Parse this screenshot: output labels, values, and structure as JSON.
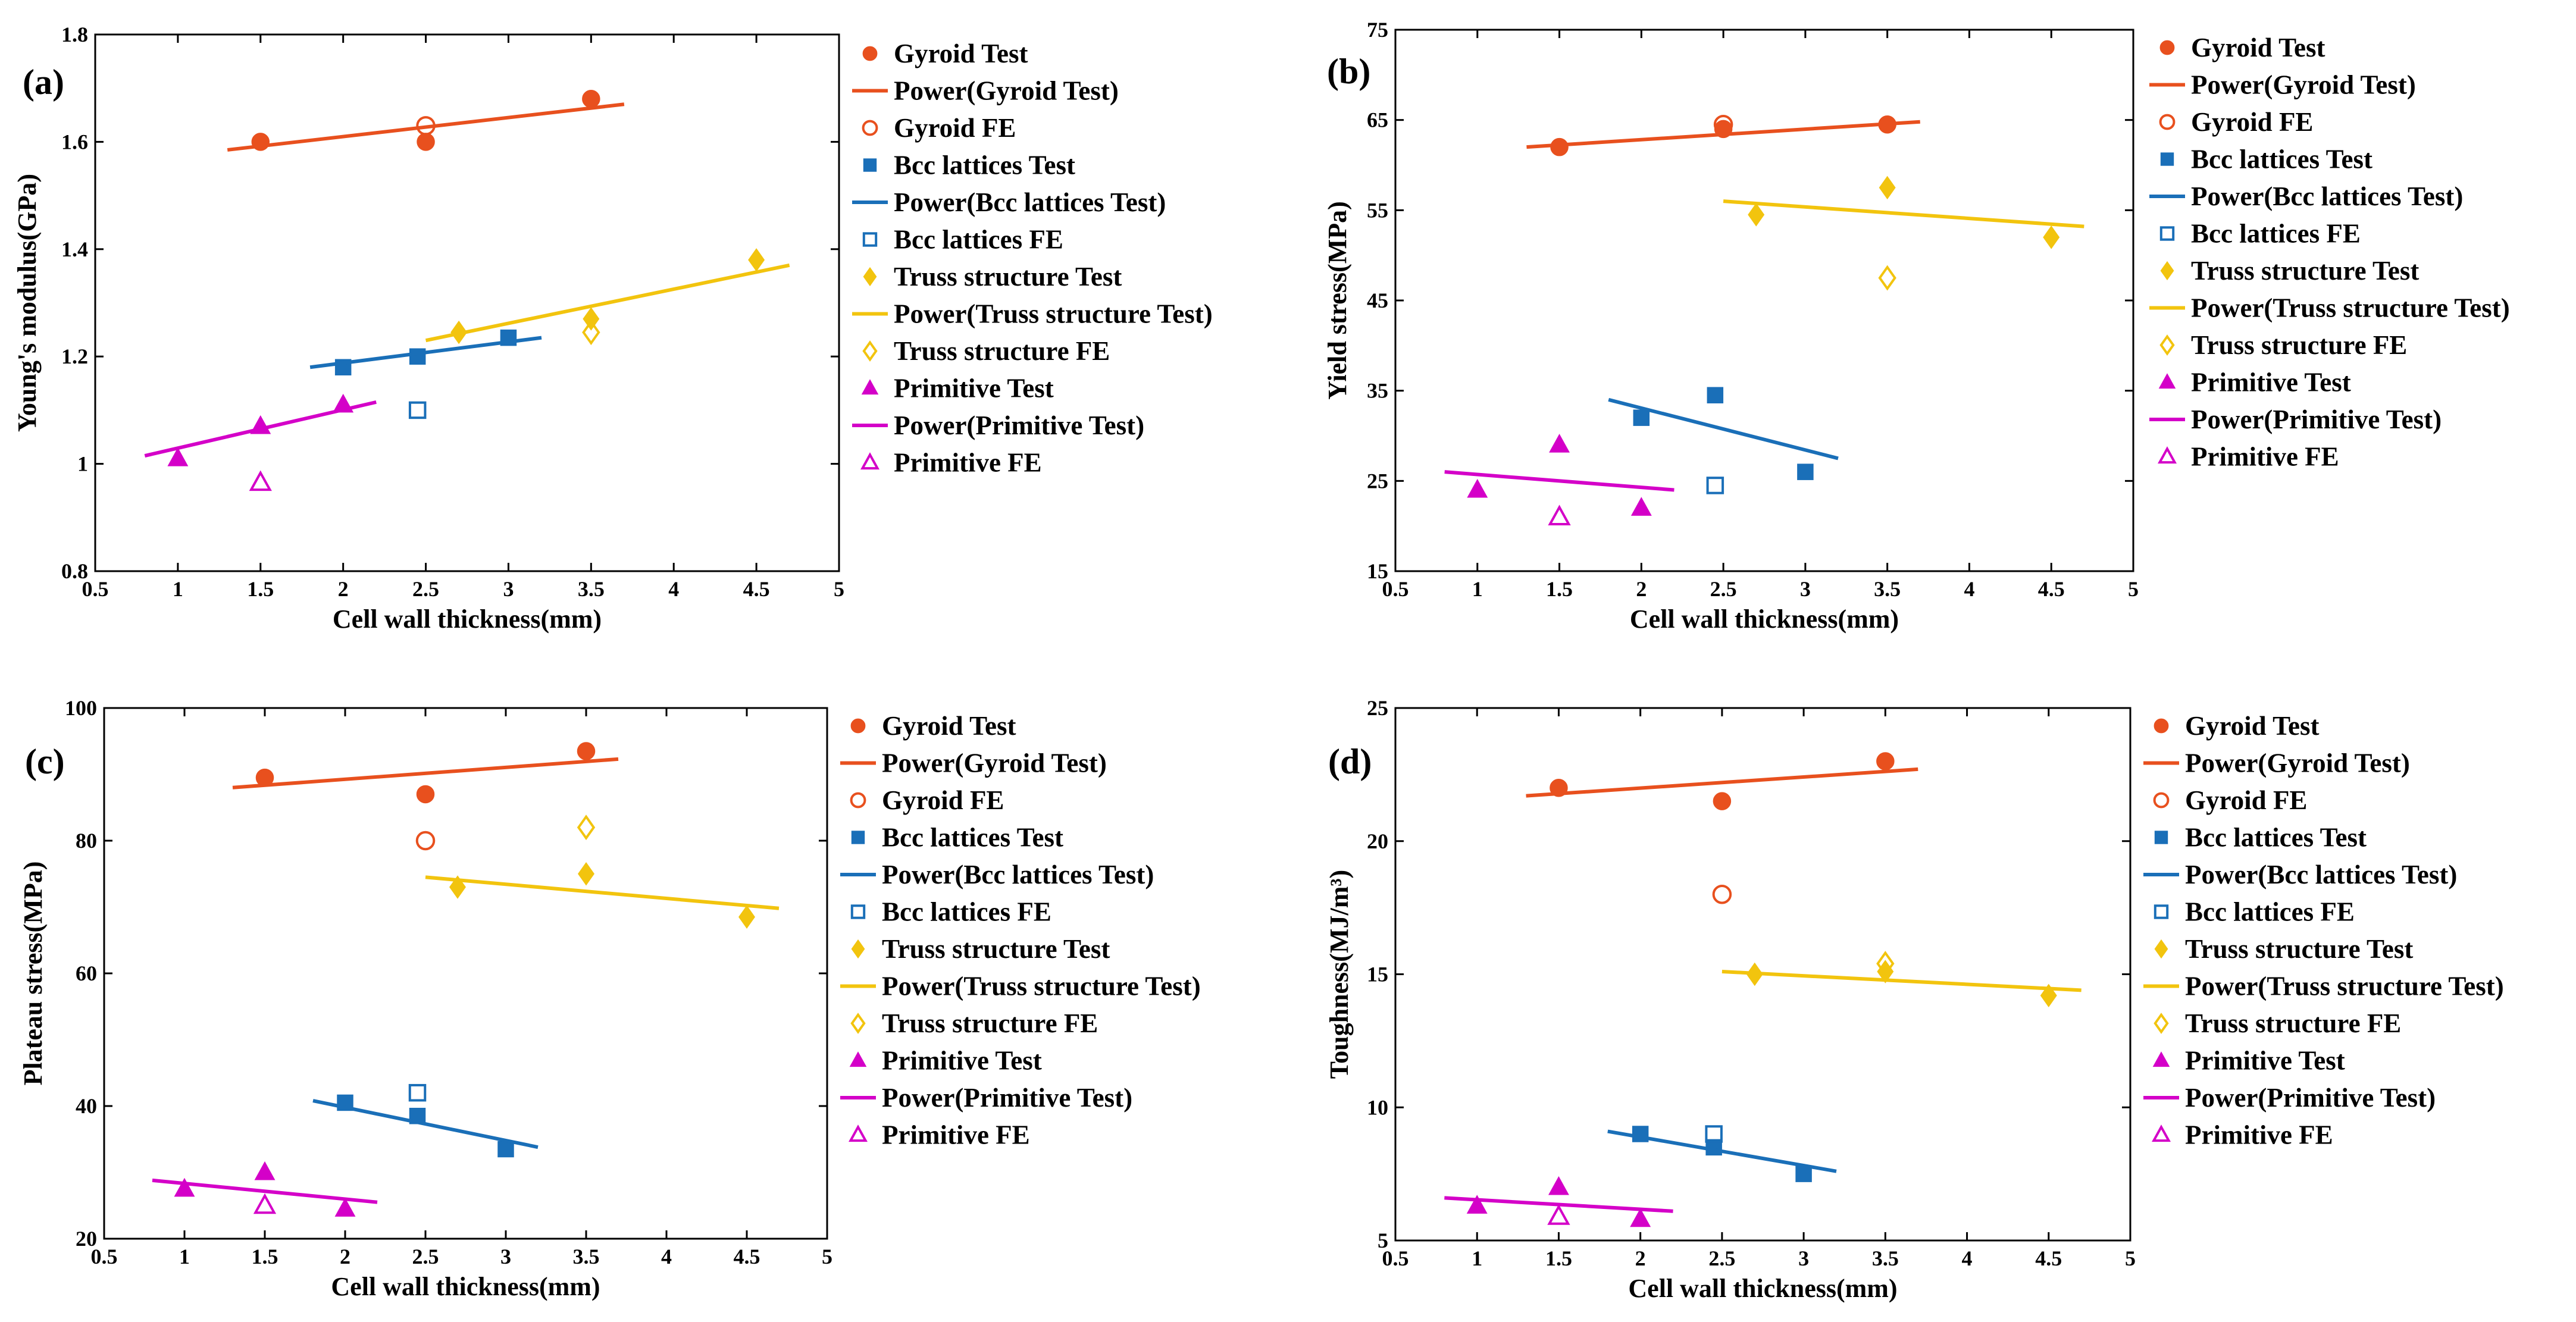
{
  "colors": {
    "gyroid": "#e8501e",
    "bcc": "#1a6fb8",
    "truss": "#f2c40e",
    "primitive": "#d400c8"
  },
  "legend": [
    {
      "label": "Gyroid Test",
      "kind": "marker",
      "marker": "circle-filled",
      "color": "gyroid"
    },
    {
      "label": "Power(Gyroid Test)",
      "kind": "line",
      "color": "gyroid"
    },
    {
      "label": "Gyroid FE",
      "kind": "marker",
      "marker": "circle-open",
      "color": "gyroid"
    },
    {
      "label": "Bcc lattices Test",
      "kind": "marker",
      "marker": "square-filled",
      "color": "bcc"
    },
    {
      "label": "Power(Bcc lattices Test)",
      "kind": "line",
      "color": "bcc"
    },
    {
      "label": "Bcc lattices FE",
      "kind": "marker",
      "marker": "square-open",
      "color": "bcc"
    },
    {
      "label": "Truss structure Test",
      "kind": "marker",
      "marker": "diamond-filled",
      "color": "truss"
    },
    {
      "label": "Power(Truss structure Test)",
      "kind": "line",
      "color": "truss"
    },
    {
      "label": "Truss structure FE",
      "kind": "marker",
      "marker": "diamond-open",
      "color": "truss"
    },
    {
      "label": "Primitive Test",
      "kind": "marker",
      "marker": "triangle-filled",
      "color": "primitive"
    },
    {
      "label": "Power(Primitive Test)",
      "kind": "line",
      "color": "primitive"
    },
    {
      "label": "Primitive FE",
      "kind": "marker",
      "marker": "triangle-open",
      "color": "primitive"
    }
  ],
  "chart_data": [
    {
      "type": "scatter",
      "panel": "(a)",
      "xlabel": "Cell wall thickness(mm)",
      "ylabel": "Young's modulus(GPa)",
      "xlim": [
        0.5,
        5
      ],
      "ylim": [
        0.8,
        1.8
      ],
      "xticks": [
        "0.5",
        "1",
        "1.5",
        "2",
        "2.5",
        "3",
        "3.5",
        "4",
        "4.5",
        "5"
      ],
      "yticks": [
        "0.8",
        "1",
        "1.2",
        "1.4",
        "1.6",
        "1.8"
      ],
      "series": [
        {
          "name": "Gyroid Test",
          "marker": "circle-filled",
          "color": "gyroid",
          "points": [
            [
              1.5,
              1.6
            ],
            [
              2.5,
              1.6
            ],
            [
              3.5,
              1.68
            ]
          ]
        },
        {
          "name": "Power(Gyroid Test)",
          "marker": "line",
          "color": "gyroid",
          "points": [
            [
              1.3,
              1.585
            ],
            [
              3.7,
              1.67
            ]
          ]
        },
        {
          "name": "Gyroid FE",
          "marker": "circle-open",
          "color": "gyroid",
          "points": [
            [
              2.5,
              1.63
            ]
          ]
        },
        {
          "name": "Bcc lattices Test",
          "marker": "square-filled",
          "color": "bcc",
          "points": [
            [
              2.0,
              1.18
            ],
            [
              2.45,
              1.2
            ],
            [
              3.0,
              1.235
            ]
          ]
        },
        {
          "name": "Power(Bcc lattices Test)",
          "marker": "line",
          "color": "bcc",
          "points": [
            [
              1.8,
              1.18
            ],
            [
              3.2,
              1.235
            ]
          ]
        },
        {
          "name": "Bcc lattices FE",
          "marker": "square-open",
          "color": "bcc",
          "points": [
            [
              2.45,
              1.1
            ]
          ]
        },
        {
          "name": "Truss structure Test",
          "marker": "diamond-filled",
          "color": "truss",
          "points": [
            [
              2.7,
              1.245
            ],
            [
              3.5,
              1.27
            ],
            [
              4.5,
              1.38
            ]
          ]
        },
        {
          "name": "Power(Truss structure Test)",
          "marker": "line",
          "color": "truss",
          "points": [
            [
              2.5,
              1.23
            ],
            [
              4.7,
              1.37
            ]
          ]
        },
        {
          "name": "Truss structure FE",
          "marker": "diamond-open",
          "color": "truss",
          "points": [
            [
              3.5,
              1.245
            ]
          ]
        },
        {
          "name": "Primitive Test",
          "marker": "triangle-filled",
          "color": "primitive",
          "points": [
            [
              1.0,
              1.01
            ],
            [
              1.5,
              1.07
            ],
            [
              2.0,
              1.11
            ]
          ]
        },
        {
          "name": "Power(Primitive Test)",
          "marker": "line",
          "color": "primitive",
          "points": [
            [
              0.8,
              1.015
            ],
            [
              2.2,
              1.115
            ]
          ]
        },
        {
          "name": "Primitive FE",
          "marker": "triangle-open",
          "color": "primitive",
          "points": [
            [
              1.5,
              0.965
            ]
          ]
        }
      ]
    },
    {
      "type": "scatter",
      "panel": "(b)",
      "xlabel": "Cell wall thickness(mm)",
      "ylabel": "Yield stress(MPa)",
      "xlim": [
        0.5,
        5
      ],
      "ylim": [
        15,
        75
      ],
      "xticks": [
        "0.5",
        "1",
        "1.5",
        "2",
        "2.5",
        "3",
        "3.5",
        "4",
        "4.5",
        "5"
      ],
      "yticks": [
        "15",
        "25",
        "35",
        "45",
        "55",
        "65",
        "75"
      ],
      "series": [
        {
          "name": "Gyroid Test",
          "marker": "circle-filled",
          "color": "gyroid",
          "points": [
            [
              1.5,
              62
            ],
            [
              2.5,
              64
            ],
            [
              3.5,
              64.5
            ]
          ]
        },
        {
          "name": "Power(Gyroid Test)",
          "marker": "line",
          "color": "gyroid",
          "points": [
            [
              1.3,
              62
            ],
            [
              3.7,
              64.8
            ]
          ]
        },
        {
          "name": "Gyroid FE",
          "marker": "circle-open",
          "color": "gyroid",
          "points": [
            [
              2.5,
              64.5
            ]
          ]
        },
        {
          "name": "Bcc lattices Test",
          "marker": "square-filled",
          "color": "bcc",
          "points": [
            [
              2.0,
              32
            ],
            [
              2.45,
              34.5
            ],
            [
              3.0,
              26
            ]
          ]
        },
        {
          "name": "Power(Bcc lattices Test)",
          "marker": "line",
          "color": "bcc",
          "points": [
            [
              1.8,
              34
            ],
            [
              3.2,
              27.5
            ]
          ]
        },
        {
          "name": "Bcc lattices FE",
          "marker": "square-open",
          "color": "bcc",
          "points": [
            [
              2.45,
              24.5
            ]
          ]
        },
        {
          "name": "Truss structure Test",
          "marker": "diamond-filled",
          "color": "truss",
          "points": [
            [
              2.7,
              54.5
            ],
            [
              3.5,
              57.5
            ],
            [
              4.5,
              52
            ]
          ]
        },
        {
          "name": "Power(Truss structure Test)",
          "marker": "line",
          "color": "truss",
          "points": [
            [
              2.5,
              56
            ],
            [
              4.7,
              53.2
            ]
          ]
        },
        {
          "name": "Truss structure FE",
          "marker": "diamond-open",
          "color": "truss",
          "points": [
            [
              3.5,
              47.5
            ]
          ]
        },
        {
          "name": "Primitive Test",
          "marker": "triangle-filled",
          "color": "primitive",
          "points": [
            [
              1.0,
              24
            ],
            [
              1.5,
              29
            ],
            [
              2.0,
              22
            ]
          ]
        },
        {
          "name": "Power(Primitive Test)",
          "marker": "line",
          "color": "primitive",
          "points": [
            [
              0.8,
              26
            ],
            [
              2.2,
              24
            ]
          ]
        },
        {
          "name": "Primitive FE",
          "marker": "triangle-open",
          "color": "primitive",
          "points": [
            [
              1.5,
              21
            ]
          ]
        }
      ]
    },
    {
      "type": "scatter",
      "panel": "(c)",
      "xlabel": "Cell wall thickness(mm)",
      "ylabel": "Plateau stress(MPa)",
      "xlim": [
        0.5,
        5
      ],
      "ylim": [
        20,
        100
      ],
      "xticks": [
        "0.5",
        "1",
        "1.5",
        "2",
        "2.5",
        "3",
        "3.5",
        "4",
        "4.5",
        "5"
      ],
      "yticks": [
        "20",
        "40",
        "60",
        "80",
        "100"
      ],
      "series": [
        {
          "name": "Gyroid Test",
          "marker": "circle-filled",
          "color": "gyroid",
          "points": [
            [
              1.5,
              89.5
            ],
            [
              2.5,
              87
            ],
            [
              3.5,
              93.5
            ]
          ]
        },
        {
          "name": "Power(Gyroid Test)",
          "marker": "line",
          "color": "gyroid",
          "points": [
            [
              1.3,
              88
            ],
            [
              3.7,
              92.3
            ]
          ]
        },
        {
          "name": "Gyroid FE",
          "marker": "circle-open",
          "color": "gyroid",
          "points": [
            [
              2.5,
              80
            ]
          ]
        },
        {
          "name": "Bcc lattices Test",
          "marker": "square-filled",
          "color": "bcc",
          "points": [
            [
              2.0,
              40.5
            ],
            [
              2.45,
              38.5
            ],
            [
              3.0,
              33.5
            ]
          ]
        },
        {
          "name": "Power(Bcc lattices Test)",
          "marker": "line",
          "color": "bcc",
          "points": [
            [
              1.8,
              40.8
            ],
            [
              3.2,
              33.8
            ]
          ]
        },
        {
          "name": "Bcc lattices FE",
          "marker": "square-open",
          "color": "bcc",
          "points": [
            [
              2.45,
              42
            ]
          ]
        },
        {
          "name": "Truss structure Test",
          "marker": "diamond-filled",
          "color": "truss",
          "points": [
            [
              2.7,
              73
            ],
            [
              3.5,
              75
            ],
            [
              4.5,
              68.5
            ]
          ]
        },
        {
          "name": "Power(Truss structure Test)",
          "marker": "line",
          "color": "truss",
          "points": [
            [
              2.5,
              74.5
            ],
            [
              4.7,
              69.8
            ]
          ]
        },
        {
          "name": "Truss structure FE",
          "marker": "diamond-open",
          "color": "truss",
          "points": [
            [
              3.5,
              82
            ]
          ]
        },
        {
          "name": "Primitive Test",
          "marker": "triangle-filled",
          "color": "primitive",
          "points": [
            [
              1.0,
              27.5
            ],
            [
              1.5,
              30
            ],
            [
              2.0,
              24.5
            ]
          ]
        },
        {
          "name": "Power(Primitive Test)",
          "marker": "line",
          "color": "primitive",
          "points": [
            [
              0.8,
              28.8
            ],
            [
              2.2,
              25.5
            ]
          ]
        },
        {
          "name": "Primitive FE",
          "marker": "triangle-open",
          "color": "primitive",
          "points": [
            [
              1.5,
              25
            ]
          ]
        }
      ]
    },
    {
      "type": "scatter",
      "panel": "(d)",
      "xlabel": "Cell wall thickness(mm)",
      "ylabel": "Toughness(MJ/m³)",
      "xlim": [
        0.5,
        5
      ],
      "ylim": [
        5,
        25
      ],
      "xticks": [
        "0.5",
        "1",
        "1.5",
        "2",
        "2.5",
        "3",
        "3.5",
        "4",
        "4.5",
        "5"
      ],
      "yticks": [
        "5",
        "10",
        "15",
        "20",
        "25"
      ],
      "series": [
        {
          "name": "Gyroid Test",
          "marker": "circle-filled",
          "color": "gyroid",
          "points": [
            [
              1.5,
              22
            ],
            [
              2.5,
              21.5
            ],
            [
              3.5,
              23
            ]
          ]
        },
        {
          "name": "Power(Gyroid Test)",
          "marker": "line",
          "color": "gyroid",
          "points": [
            [
              1.3,
              21.7
            ],
            [
              3.7,
              22.7
            ]
          ]
        },
        {
          "name": "Gyroid FE",
          "marker": "circle-open",
          "color": "gyroid",
          "points": [
            [
              2.5,
              18
            ]
          ]
        },
        {
          "name": "Bcc lattices Test",
          "marker": "square-filled",
          "color": "bcc",
          "points": [
            [
              2.0,
              9
            ],
            [
              2.45,
              8.5
            ],
            [
              3.0,
              7.5
            ]
          ]
        },
        {
          "name": "Power(Bcc lattices Test)",
          "marker": "line",
          "color": "bcc",
          "points": [
            [
              1.8,
              9.1
            ],
            [
              3.2,
              7.6
            ]
          ]
        },
        {
          "name": "Bcc lattices FE",
          "marker": "square-open",
          "color": "bcc",
          "points": [
            [
              2.45,
              9
            ]
          ]
        },
        {
          "name": "Truss structure Test",
          "marker": "diamond-filled",
          "color": "truss",
          "points": [
            [
              2.7,
              15
            ],
            [
              3.5,
              15.1
            ],
            [
              4.5,
              14.2
            ]
          ]
        },
        {
          "name": "Power(Truss structure Test)",
          "marker": "line",
          "color": "truss",
          "points": [
            [
              2.5,
              15.1
            ],
            [
              4.7,
              14.4
            ]
          ]
        },
        {
          "name": "Truss structure FE",
          "marker": "diamond-open",
          "color": "truss",
          "points": [
            [
              3.5,
              15.4
            ]
          ]
        },
        {
          "name": "Primitive Test",
          "marker": "triangle-filled",
          "color": "primitive",
          "points": [
            [
              1.0,
              6.3
            ],
            [
              1.5,
              7.0
            ],
            [
              2.0,
              5.8
            ]
          ]
        },
        {
          "name": "Power(Primitive Test)",
          "marker": "line",
          "color": "primitive",
          "points": [
            [
              0.8,
              6.6
            ],
            [
              2.2,
              6.1
            ]
          ]
        },
        {
          "name": "Primitive FE",
          "marker": "triangle-open",
          "color": "primitive",
          "points": [
            [
              1.5,
              5.9
            ]
          ]
        }
      ]
    }
  ]
}
